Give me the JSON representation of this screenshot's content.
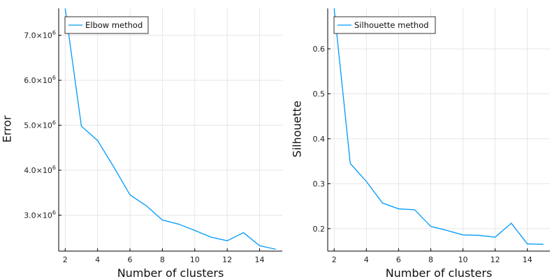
{
  "chart_data": [
    {
      "type": "line",
      "title": "",
      "xlabel": "Number of clusters",
      "ylabel": "Error",
      "xlim": [
        1.6,
        15.4
      ],
      "ylim": [
        2200000,
        7600000
      ],
      "xticks": [
        2,
        4,
        6,
        8,
        10,
        12,
        14
      ],
      "yticks": [
        {
          "value": 3000000,
          "mantissa": "3.0",
          "exp": "6"
        },
        {
          "value": 4000000,
          "mantissa": "4.0",
          "exp": "6"
        },
        {
          "value": 5000000,
          "mantissa": "5.0",
          "exp": "6"
        },
        {
          "value": 6000000,
          "mantissa": "6.0",
          "exp": "6"
        },
        {
          "value": 7000000,
          "mantissa": "7.0",
          "exp": "6"
        }
      ],
      "grid": true,
      "legend_position": "top-left",
      "x": [
        2,
        3,
        4,
        5,
        6,
        7,
        8,
        9,
        10,
        11,
        12,
        13,
        14,
        15
      ],
      "series": [
        {
          "name": "Elbow method",
          "color": "#009AFA",
          "values": [
            7600000,
            4980000,
            4660000,
            4070000,
            3450000,
            3210000,
            2890000,
            2800000,
            2660000,
            2510000,
            2430000,
            2610000,
            2320000,
            2240000
          ]
        }
      ]
    },
    {
      "type": "line",
      "title": "",
      "xlabel": "Number of clusters",
      "ylabel": "Silhouette",
      "xlim": [
        1.6,
        15.4
      ],
      "ylim": [
        0.15,
        0.69
      ],
      "xticks": [
        2,
        4,
        6,
        8,
        10,
        12,
        14
      ],
      "yticks": [
        {
          "value": 0.2,
          "label": "0.2"
        },
        {
          "value": 0.3,
          "label": "0.3"
        },
        {
          "value": 0.4,
          "label": "0.4"
        },
        {
          "value": 0.5,
          "label": "0.5"
        },
        {
          "value": 0.6,
          "label": "0.6"
        }
      ],
      "grid": true,
      "legend_position": "top-left",
      "x": [
        2,
        3,
        4,
        5,
        6,
        7,
        8,
        9,
        10,
        11,
        12,
        13,
        14,
        15
      ],
      "series": [
        {
          "name": "Silhouette method",
          "color": "#009AFA",
          "values": [
            0.69,
            0.345,
            0.305,
            0.257,
            0.244,
            0.242,
            0.205,
            0.196,
            0.186,
            0.185,
            0.181,
            0.212,
            0.166,
            0.165
          ]
        }
      ]
    }
  ]
}
